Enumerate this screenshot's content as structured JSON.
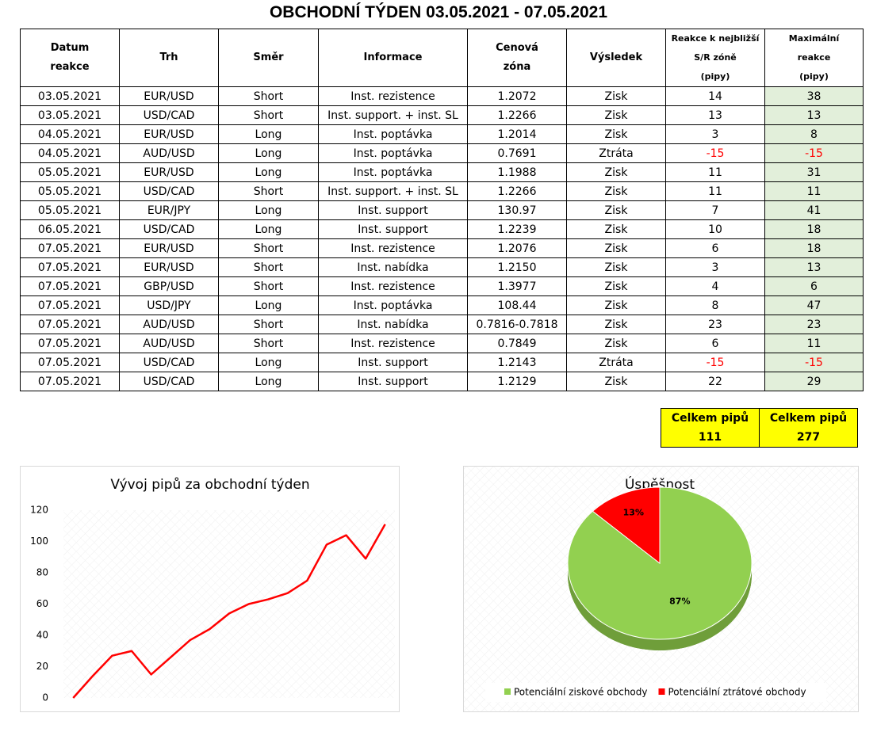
{
  "header": {
    "title": "OBCHODNÍ TÝDEN 03.05.2021 - 07.05.2021"
  },
  "table": {
    "columns": [
      [
        "Datum",
        "reakce"
      ],
      [
        "Trh"
      ],
      [
        "Směr"
      ],
      [
        "Informace"
      ],
      [
        "Cenová",
        "zóna"
      ],
      [
        "Výsledek"
      ],
      [
        "Reakce k nejbližší",
        "S/R zóně",
        "(pipy)"
      ],
      [
        "Maximální",
        "reakce",
        "(pipy)"
      ]
    ],
    "rows": [
      [
        "03.05.2021",
        "EUR/USD",
        "Short",
        "Inst. rezistence",
        "1.2072",
        "Zisk",
        "14",
        "38"
      ],
      [
        "03.05.2021",
        "USD/CAD",
        "Short",
        "Inst. support. + inst. SL",
        "1.2266",
        "Zisk",
        "13",
        "13"
      ],
      [
        "04.05.2021",
        "EUR/USD",
        "Long",
        "Inst. poptávka",
        "1.2014",
        "Zisk",
        "3",
        "8"
      ],
      [
        "04.05.2021",
        "AUD/USD",
        "Long",
        "Inst. poptávka",
        "0.7691",
        "Ztráta",
        "-15",
        "-15"
      ],
      [
        "05.05.2021",
        "EUR/USD",
        "Long",
        "Inst. poptávka",
        "1.1988",
        "Zisk",
        "11",
        "31"
      ],
      [
        "05.05.2021",
        "USD/CAD",
        "Short",
        "Inst. support. + inst. SL",
        "1.2266",
        "Zisk",
        "11",
        "11"
      ],
      [
        "05.05.2021",
        "EUR/JPY",
        "Long",
        "Inst. support",
        "130.97",
        "Zisk",
        "7",
        "41"
      ],
      [
        "06.05.2021",
        "USD/CAD",
        "Long",
        "Inst. support",
        "1.2239",
        "Zisk",
        "10",
        "18"
      ],
      [
        "07.05.2021",
        "EUR/USD",
        "Short",
        "Inst. rezistence",
        "1.2076",
        "Zisk",
        "6",
        "18"
      ],
      [
        "07.05.2021",
        "EUR/USD",
        "Short",
        "Inst. nabídka",
        "1.2150",
        "Zisk",
        "3",
        "13"
      ],
      [
        "07.05.2021",
        "GBP/USD",
        "Short",
        "Inst. rezistence",
        "1.3977",
        "Zisk",
        "4",
        "6"
      ],
      [
        "07.05.2021",
        "USD/JPY",
        "Long",
        "Inst. poptávka",
        "108.44",
        "Zisk",
        "8",
        "47"
      ],
      [
        "07.05.2021",
        "AUD/USD",
        "Short",
        "Inst. nabídka",
        "0.7816-0.7818",
        "Zisk",
        "23",
        "23"
      ],
      [
        "07.05.2021",
        "AUD/USD",
        "Short",
        "Inst. rezistence",
        "0.7849",
        "Zisk",
        "6",
        "11"
      ],
      [
        "07.05.2021",
        "USD/CAD",
        "Long",
        "Inst. support",
        "1.2143",
        "Ztráta",
        "-15",
        "-15"
      ],
      [
        "07.05.2021",
        "USD/CAD",
        "Long",
        "Inst. support",
        "1.2129",
        "Zisk",
        "22",
        "29"
      ]
    ]
  },
  "totals": [
    {
      "label": "Celkem pipů",
      "value": "111"
    },
    {
      "label": "Celkem pipů",
      "value": "277"
    }
  ],
  "chart_data": [
    {
      "type": "line",
      "title": "Vývoj pipů za obchodní týden",
      "color": "#ff0000",
      "values": [
        0,
        14,
        27,
        30,
        15,
        26,
        37,
        44,
        54,
        60,
        63,
        67,
        75,
        98,
        104,
        89,
        111
      ],
      "ylim": [
        0,
        120
      ],
      "yticks": [
        0,
        20,
        40,
        60,
        80,
        100,
        120
      ]
    },
    {
      "type": "pie",
      "title": "Úspěšnost",
      "categories": [
        "Potenciální ziskové obchody",
        "Potenciální ztrátové obchody"
      ],
      "values": [
        87,
        13
      ],
      "value_labels": [
        "87%",
        "13%"
      ],
      "colors": [
        "#92d050",
        "#ff0000"
      ],
      "legend": "bottom"
    }
  ]
}
